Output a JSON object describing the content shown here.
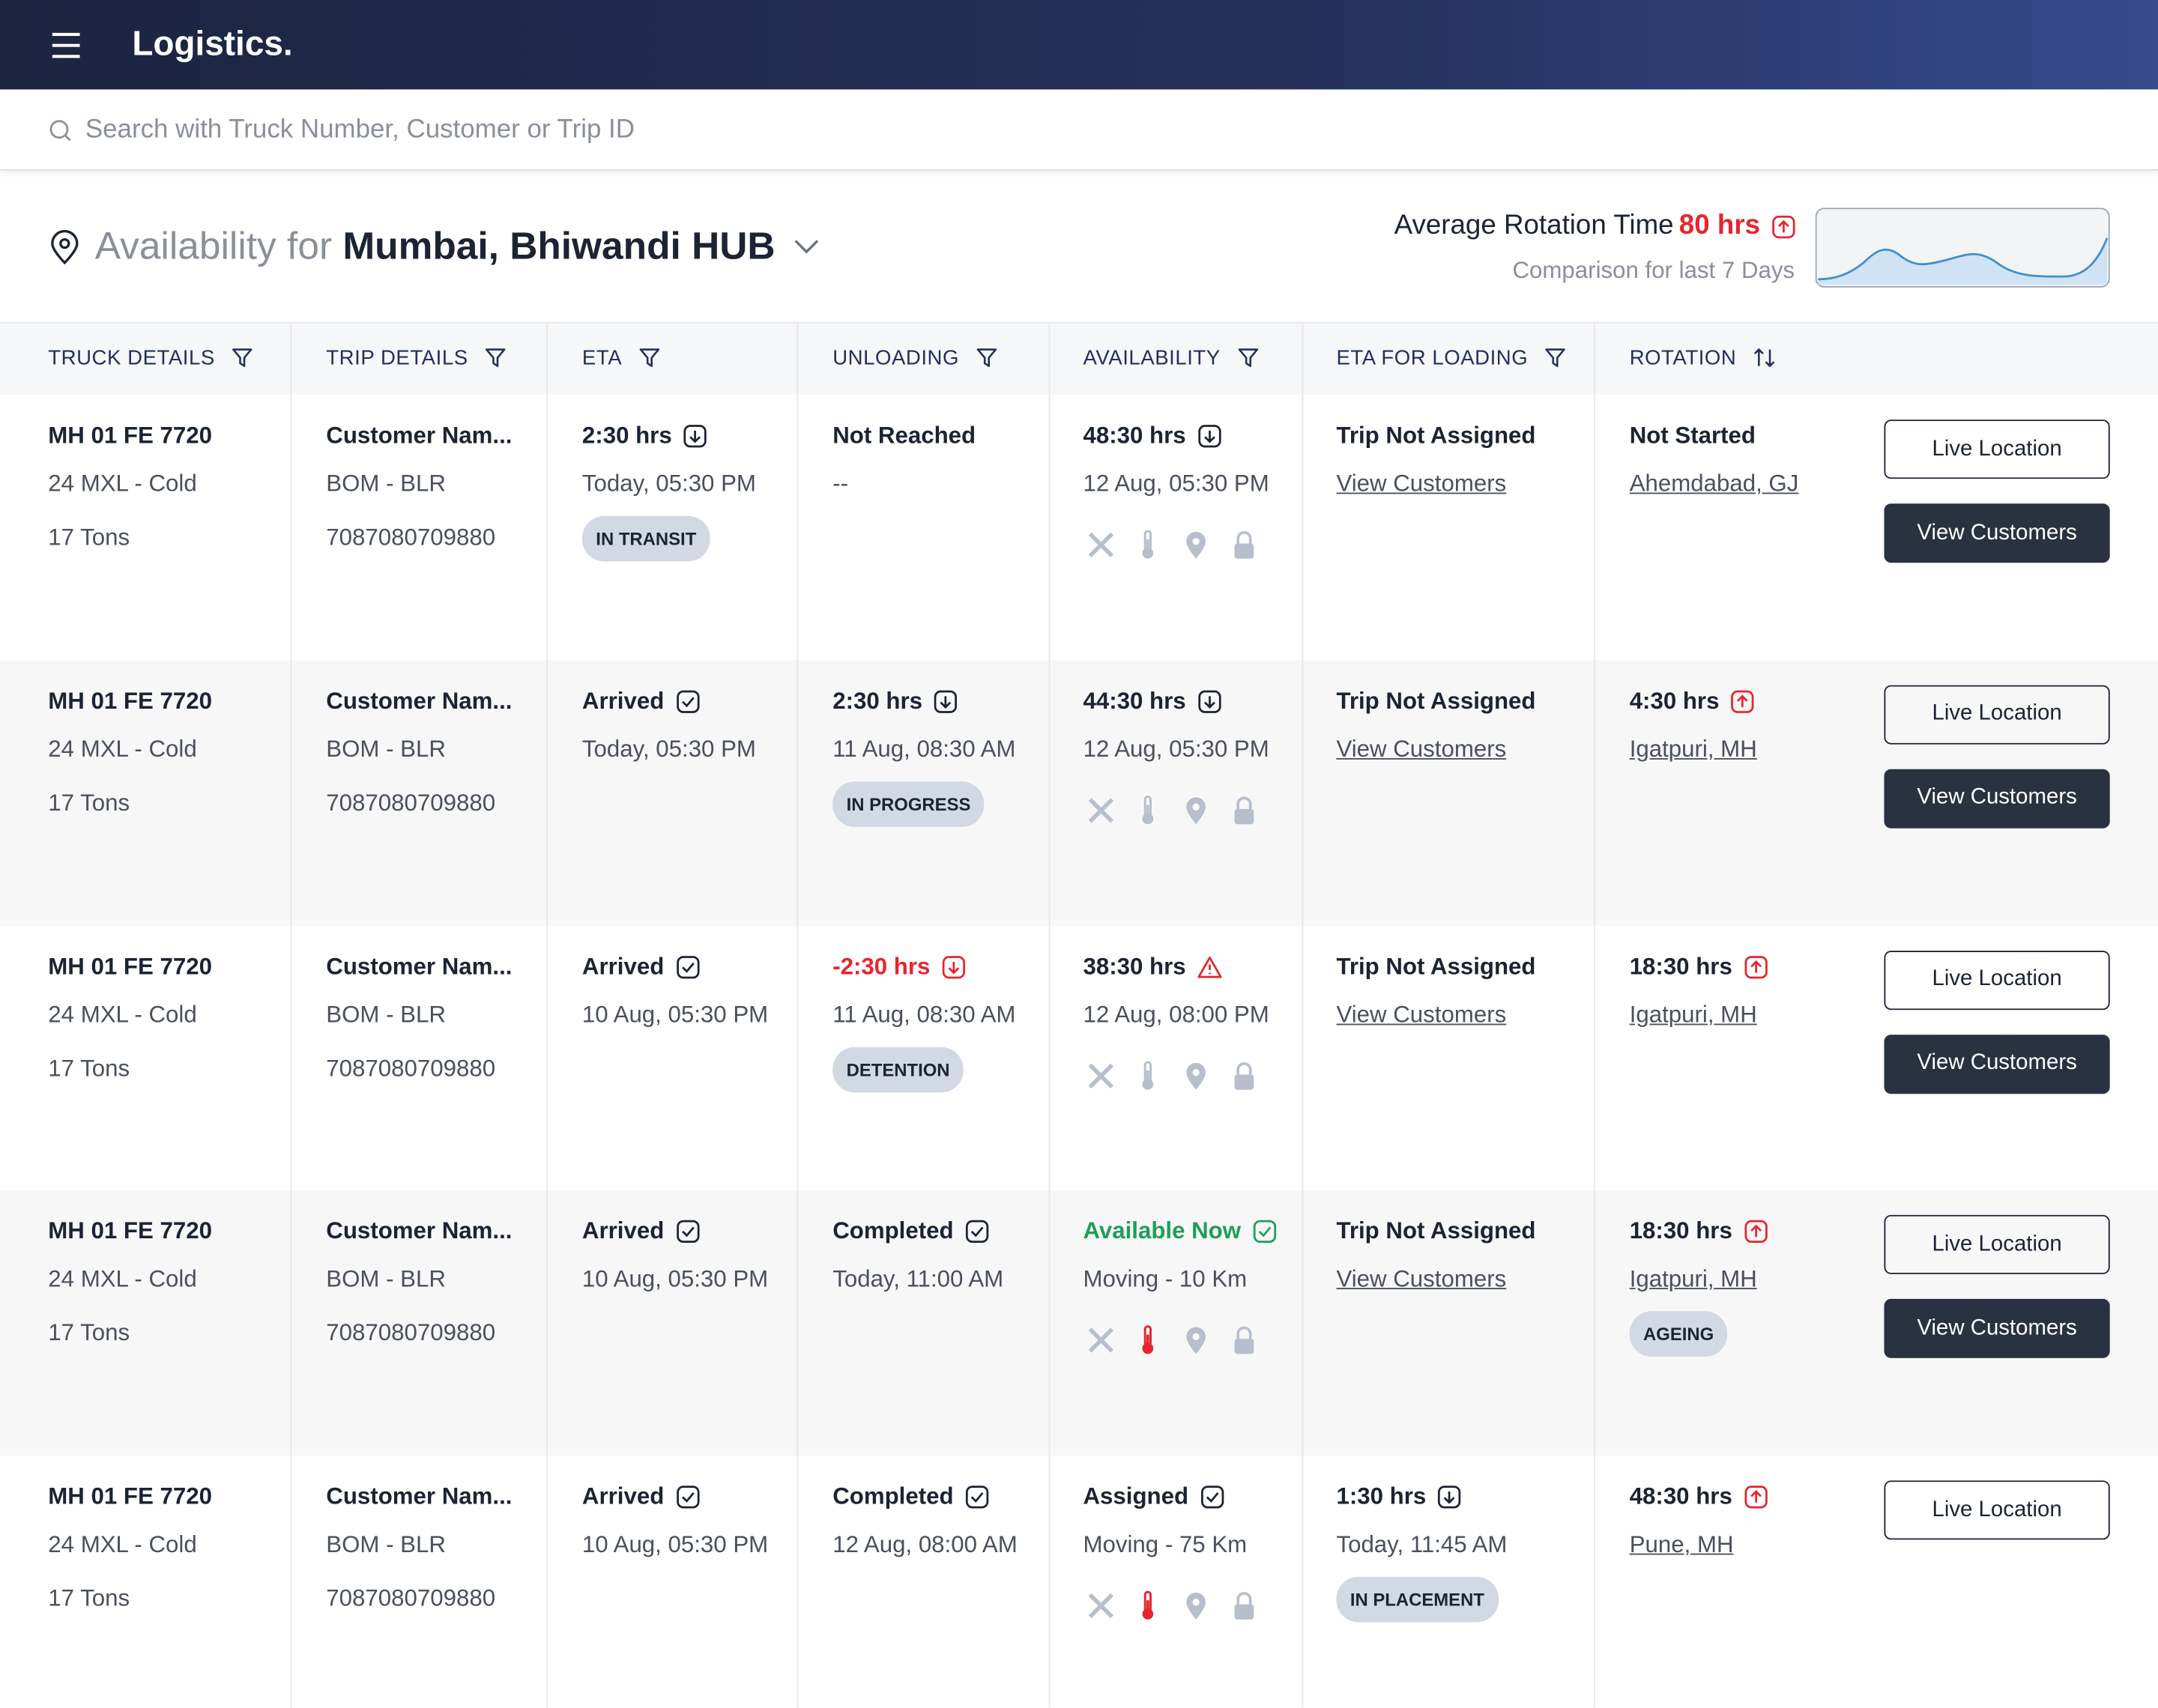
{
  "header": {
    "brand": "Logistics.",
    "search_placeholder": "Search with Truck Number, Customer or Trip ID"
  },
  "availability": {
    "prefix": "Availability for",
    "hub": "Mumbai, Bhiwandi HUB"
  },
  "rotation_summary": {
    "label": "Average Rotation Time",
    "value": "80 hrs",
    "subtitle": "Comparison for last 7 Days"
  },
  "columns": [
    {
      "label": "TRUCK DETAILS",
      "control": "filter"
    },
    {
      "label": "TRIP DETAILS",
      "control": "filter"
    },
    {
      "label": "ETA",
      "control": "filter"
    },
    {
      "label": "UNLOADING",
      "control": "filter"
    },
    {
      "label": "AVAILABILITY",
      "control": "filter"
    },
    {
      "label": "ETA FOR LOADING",
      "control": "filter"
    },
    {
      "label": "ROTATION",
      "control": "sort"
    }
  ],
  "rows": [
    {
      "truck": {
        "main": "MH 01 FE 7720",
        "sub": "24 MXL - Cold",
        "third": "17 Tons"
      },
      "trip": {
        "main": "Customer Nam...",
        "sub": "BOM - BLR",
        "third": "7087080709880"
      },
      "eta": {
        "main": "2:30 hrs",
        "icon": "down",
        "sub": "Today, 05:30 PM",
        "badge": "IN TRANSIT"
      },
      "unloading": {
        "main": "Not Reached",
        "sub": "--"
      },
      "availability": {
        "main": "48:30 hrs",
        "icon": "down",
        "sub": "12 Aug, 05:30 PM",
        "temp_alert": false
      },
      "loading": {
        "main": "Trip Not Assigned",
        "sub": "View Customers",
        "sub_link": true
      },
      "rotation": {
        "main": "Not Started",
        "sub": "Ahemdabad, GJ",
        "sub_link": true
      },
      "actions": [
        "Live Location",
        "View Customers"
      ]
    },
    {
      "truck": {
        "main": "MH 01 FE 7720",
        "sub": "24 MXL - Cold",
        "third": "17 Tons"
      },
      "trip": {
        "main": "Customer Nam...",
        "sub": "BOM - BLR",
        "third": "7087080709880"
      },
      "eta": {
        "main": "Arrived",
        "icon": "check",
        "sub": "Today, 05:30 PM"
      },
      "unloading": {
        "main": "2:30 hrs",
        "icon": "down",
        "sub": "11 Aug, 08:30 AM",
        "badge": "IN PROGRESS"
      },
      "availability": {
        "main": "44:30 hrs",
        "icon": "down",
        "sub": "12 Aug, 05:30 PM",
        "temp_alert": false
      },
      "loading": {
        "main": "Trip Not Assigned",
        "sub": "View Customers",
        "sub_link": true
      },
      "rotation": {
        "main": "4:30 hrs",
        "icon": "up",
        "sub": "Igatpuri, MH",
        "sub_link": true
      },
      "actions": [
        "Live Location",
        "View Customers"
      ]
    },
    {
      "truck": {
        "main": "MH 01 FE 7720",
        "sub": "24 MXL - Cold",
        "third": "17 Tons"
      },
      "trip": {
        "main": "Customer Nam...",
        "sub": "BOM - BLR",
        "third": "7087080709880"
      },
      "eta": {
        "main": "Arrived",
        "icon": "check",
        "sub": "10 Aug, 05:30 PM"
      },
      "unloading": {
        "main": "-2:30 hrs",
        "icon": "down",
        "tone": "#e5262f",
        "sub": "11 Aug, 08:30 AM",
        "badge": "DETENTION"
      },
      "availability": {
        "main": "38:30 hrs",
        "icon": "warn",
        "sub": "12 Aug, 08:00 PM",
        "temp_alert": false
      },
      "loading": {
        "main": "Trip Not Assigned",
        "sub": "View Customers",
        "sub_link": true
      },
      "rotation": {
        "main": "18:30 hrs",
        "icon": "up",
        "sub": "Igatpuri, MH",
        "sub_link": true
      },
      "actions": [
        "Live Location",
        "View Customers"
      ]
    },
    {
      "truck": {
        "main": "MH 01 FE 7720",
        "sub": "24 MXL - Cold",
        "third": "17 Tons"
      },
      "trip": {
        "main": "Customer Nam...",
        "sub": "BOM - BLR",
        "third": "7087080709880"
      },
      "eta": {
        "main": "Arrived",
        "icon": "check",
        "sub": "10 Aug, 05:30 PM"
      },
      "unloading": {
        "main": "Completed",
        "icon": "check",
        "sub": "Today, 11:00 AM"
      },
      "availability": {
        "main": "Available Now",
        "icon": "check",
        "tone": "#1e9e5a",
        "sub": "Moving - 10 Km",
        "temp_alert": true
      },
      "loading": {
        "main": "Trip Not Assigned",
        "sub": "View Customers",
        "sub_link": true
      },
      "rotation": {
        "main": "18:30 hrs",
        "icon": "up",
        "sub": "Igatpuri, MH",
        "sub_link": true,
        "badge": "AGEING"
      },
      "actions": [
        "Live Location",
        "View Customers"
      ]
    },
    {
      "truck": {
        "main": "MH 01 FE 7720",
        "sub": "24 MXL - Cold",
        "third": "17 Tons"
      },
      "trip": {
        "main": "Customer Nam...",
        "sub": "BOM - BLR",
        "third": "7087080709880"
      },
      "eta": {
        "main": "Arrived",
        "icon": "check",
        "sub": "10 Aug, 05:30 PM"
      },
      "unloading": {
        "main": "Completed",
        "icon": "check",
        "sub": "12 Aug, 08:00 AM"
      },
      "availability": {
        "main": "Assigned",
        "icon": "check",
        "sub": "Moving - 75 Km",
        "temp_alert": true
      },
      "loading": {
        "main": "1:30 hrs",
        "icon": "down",
        "sub": "Today, 11:45 AM",
        "badge": "IN PLACEMENT"
      },
      "rotation": {
        "main": "48:30 hrs",
        "icon": "up",
        "sub": "Pune, MH",
        "sub_link": true
      },
      "actions": [
        "Live Location"
      ]
    }
  ]
}
